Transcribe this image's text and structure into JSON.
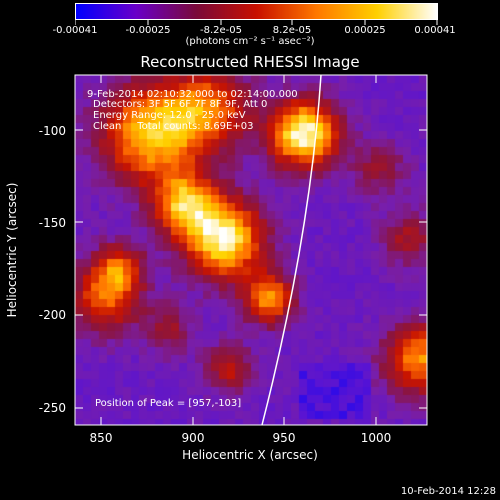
{
  "colorbar": {
    "tick_labels": [
      "-0.00041",
      "-0.00025",
      "-8.2e-05",
      "8.2e-05",
      "0.00025",
      "0.00041"
    ],
    "units_label": "(photons cm⁻² s⁻¹ asec⁻²)",
    "colors": [
      "#0000ff",
      "#6a00c8",
      "#7a0a3a",
      "#c81000",
      "#ff7800",
      "#ffd000",
      "#ffffff"
    ]
  },
  "image": {
    "title": "Reconstructed RHESSI Image",
    "info_lines": [
      "9-Feb-2014 02:10:32.000 to 02:14:00.000",
      "Detectors: 3F 5F 6F 7F 8F 9F, Att 0",
      "Energy Range: 12.0 - 25.0 keV",
      "Clean     Total counts: 8.69E+03"
    ],
    "peak_label": "Position of Peak = [957,-103]"
  },
  "axes": {
    "xlabel": "Heliocentric X (arcsec)",
    "ylabel": "Heliocentric Y (arcsec)",
    "x_ticks": [
      "850",
      "900",
      "950",
      "1000"
    ],
    "y_ticks": [
      "-100",
      "-150",
      "-200",
      "-250"
    ]
  },
  "timestamp": "10-Feb-2014 12:28"
}
